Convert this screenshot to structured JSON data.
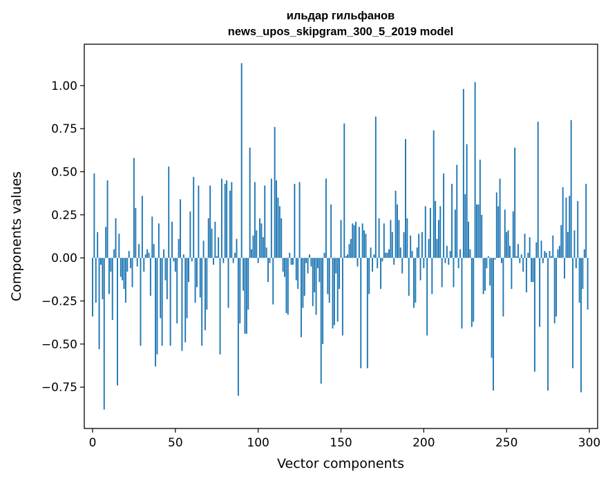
{
  "chart_data": {
    "type": "bar",
    "title": [
      "ильдар гильфанов",
      "news_upos_skipgram_300_5_2019 model"
    ],
    "xlabel": "Vector components",
    "ylabel": "Components values",
    "xlim": [
      -5,
      305
    ],
    "ylim": [
      -0.99,
      1.24
    ],
    "xticks": [
      0,
      50,
      100,
      150,
      200,
      250,
      300
    ],
    "xtick_labels": [
      "0",
      "50",
      "100",
      "150",
      "200",
      "250",
      "300"
    ],
    "yticks": [
      -0.75,
      -0.5,
      -0.25,
      0.0,
      0.25,
      0.5,
      0.75,
      1.0
    ],
    "ytick_labels": [
      "−0.75",
      "−0.50",
      "−0.25",
      "0.00",
      "0.25",
      "0.50",
      "0.75",
      "1.00"
    ],
    "grid": false,
    "bar_color": "#1f77b4",
    "x": "indices 0..299",
    "values": [
      -0.34,
      0.49,
      -0.26,
      0.15,
      -0.53,
      -0.04,
      -0.24,
      -0.88,
      0.18,
      0.45,
      -0.21,
      -0.08,
      -0.36,
      0.05,
      0.23,
      -0.74,
      0.14,
      -0.11,
      -0.13,
      -0.18,
      -0.26,
      -0.08,
      0.04,
      -0.06,
      -0.17,
      0.58,
      0.29,
      -0.05,
      0.08,
      -0.51,
      0.36,
      -0.08,
      0.02,
      0.05,
      0.03,
      -0.22,
      0.24,
      0.08,
      -0.63,
      -0.56,
      0.2,
      -0.35,
      -0.51,
      0.05,
      -0.13,
      -0.24,
      0.53,
      -0.51,
      0.21,
      -0.02,
      -0.08,
      -0.38,
      0.11,
      0.34,
      -0.54,
      0.02,
      -0.49,
      -0.35,
      -0.14,
      0.27,
      -0.02,
      0.47,
      -0.26,
      -0.17,
      0.42,
      -0.23,
      -0.51,
      0.1,
      -0.42,
      -0.3,
      0.23,
      0.42,
      0.17,
      -0.04,
      0.21,
      0.01,
      0.12,
      -0.56,
      0.46,
      -0.03,
      0.43,
      0.45,
      -0.29,
      0.39,
      0.44,
      -0.03,
      0.03,
      0.11,
      -0.8,
      -0.38,
      1.13,
      -0.19,
      -0.44,
      -0.44,
      -0.3,
      0.64,
      0.05,
      0.13,
      0.44,
      0.16,
      -0.03,
      0.23,
      0.2,
      0.12,
      0.42,
      0.06,
      -0.14,
      -0.03,
      0.46,
      -0.27,
      0.76,
      0.45,
      0.35,
      0.3,
      0.23,
      -0.08,
      -0.11,
      -0.32,
      -0.33,
      0.03,
      -0.04,
      -0.04,
      0.43,
      -0.13,
      -0.18,
      0.44,
      -0.46,
      -0.29,
      -0.22,
      -0.03,
      -0.09,
      0.02,
      -0.05,
      -0.28,
      -0.2,
      -0.33,
      -0.06,
      -0.14,
      -0.73,
      -0.5,
      0.03,
      0.46,
      -0.21,
      -0.26,
      0.31,
      -0.41,
      -0.39,
      -0.09,
      -0.37,
      -0.18,
      0.22,
      -0.45,
      0.78,
      0.01,
      0.02,
      0.08,
      0.11,
      0.2,
      0.19,
      0.21,
      -0.05,
      0.18,
      -0.64,
      0.2,
      0.16,
      0.14,
      -0.64,
      -0.21,
      0.06,
      -0.08,
      0.02,
      0.82,
      -0.06,
      0.23,
      -0.18,
      -0.02,
      0.2,
      0.03,
      0.03,
      0.05,
      0.22,
      0.15,
      -0.04,
      0.39,
      0.31,
      0.22,
      0.06,
      -0.09,
      0.15,
      0.69,
      0.23,
      -0.22,
      0.13,
      0.04,
      -0.29,
      -0.26,
      0.06,
      0.14,
      -0.13,
      0.15,
      -0.06,
      0.3,
      -0.45,
      0.11,
      0.29,
      -0.21,
      0.74,
      0.33,
      0.11,
      0.22,
      0.3,
      -0.17,
      0.49,
      -0.03,
      0.07,
      -0.04,
      0.04,
      0.43,
      -0.17,
      0.28,
      0.54,
      -0.06,
      0.05,
      -0.41,
      0.98,
      0.37,
      0.66,
      0.21,
      0.05,
      -0.4,
      -0.37,
      1.02,
      0.31,
      0.31,
      0.57,
      0.25,
      -0.21,
      -0.19,
      -0.06,
      0.01,
      -0.16,
      -0.58,
      -0.77,
      -0.01,
      0.38,
      0.3,
      0.46,
      -0.03,
      -0.34,
      0.28,
      0.15,
      0.16,
      0.07,
      -0.18,
      0.27,
      0.64,
      0.01,
      0.08,
      -0.03,
      0.02,
      -0.08,
      0.14,
      -0.2,
      0.03,
      0.12,
      -0.14,
      -0.14,
      -0.66,
      0.09,
      0.79,
      -0.4,
      0.1,
      -0.03,
      0.04,
      0.03,
      -0.77,
      0.04,
      0.01,
      0.13,
      -0.38,
      -0.34,
      0.05,
      0.07,
      0.19,
      0.41,
      -0.12,
      0.35,
      0.15,
      0.36,
      0.8,
      -0.64,
      0.16,
      -0.06,
      0.33,
      -0.26,
      -0.78,
      -0.18,
      0.05,
      0.43,
      -0.3
    ]
  }
}
